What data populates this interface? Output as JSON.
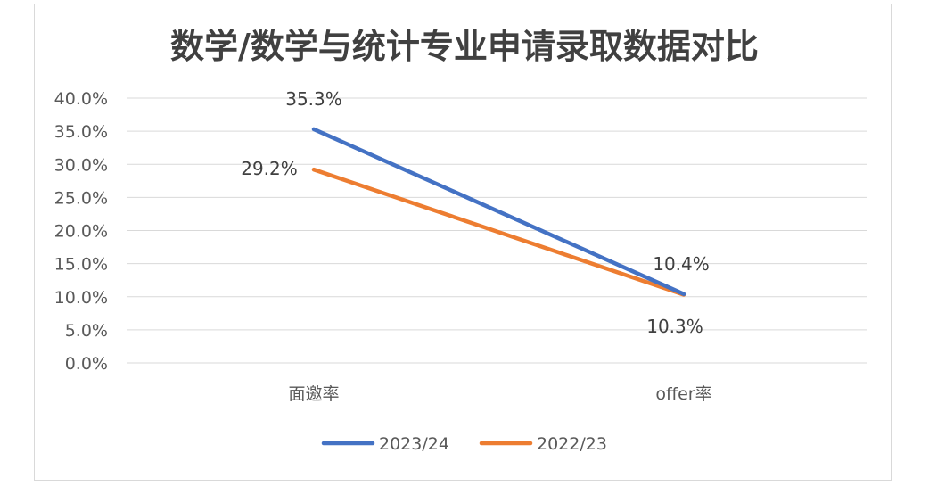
{
  "chart_data": {
    "type": "line",
    "title": "数学/数学与统计专业申请录取数据对比",
    "categories": [
      "面邀率",
      "offer率"
    ],
    "y_ticks": [
      "0.0%",
      "5.0%",
      "10.0%",
      "15.0%",
      "20.0%",
      "25.0%",
      "30.0%",
      "35.0%",
      "40.0%"
    ],
    "ylim": [
      0,
      40
    ],
    "grid": true,
    "legend_position": "bottom",
    "series": [
      {
        "name": "2023/24",
        "values": [
          35.3,
          10.4
        ],
        "labels": [
          "35.3%",
          "10.4%"
        ],
        "color": "#4472C4"
      },
      {
        "name": "2022/23",
        "values": [
          29.2,
          10.3
        ],
        "labels": [
          "29.2%",
          "10.3%"
        ],
        "color": "#ED7D31"
      }
    ]
  }
}
